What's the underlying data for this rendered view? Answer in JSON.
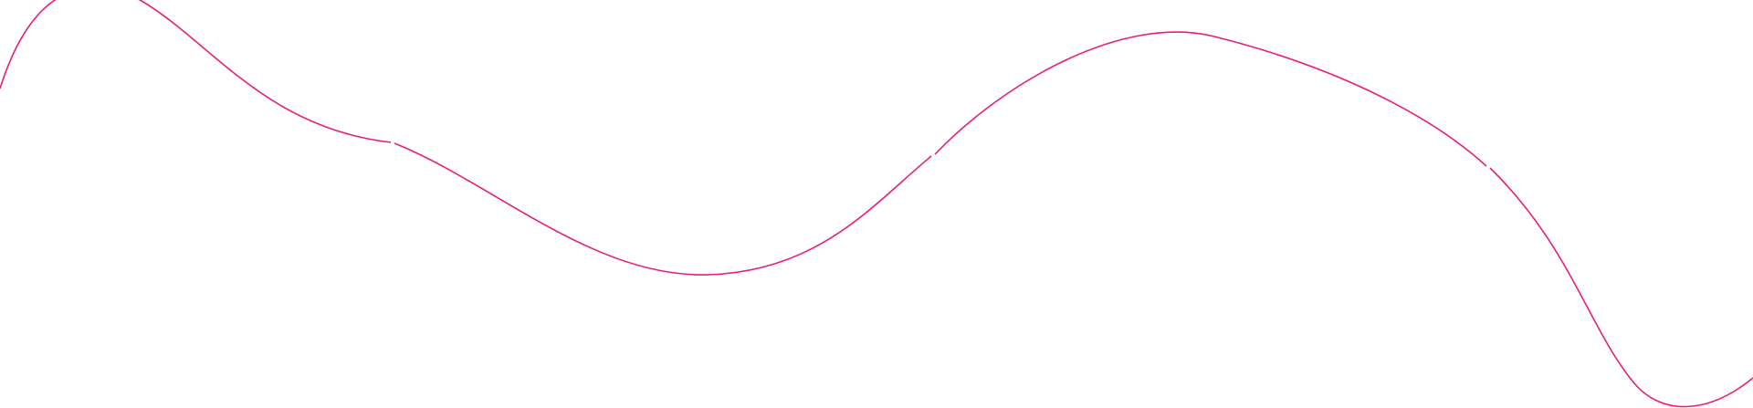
{
  "decoration": {
    "stroke_color": "#e91e7a",
    "background_color": "#ffffff",
    "icon": "wavy-line"
  }
}
